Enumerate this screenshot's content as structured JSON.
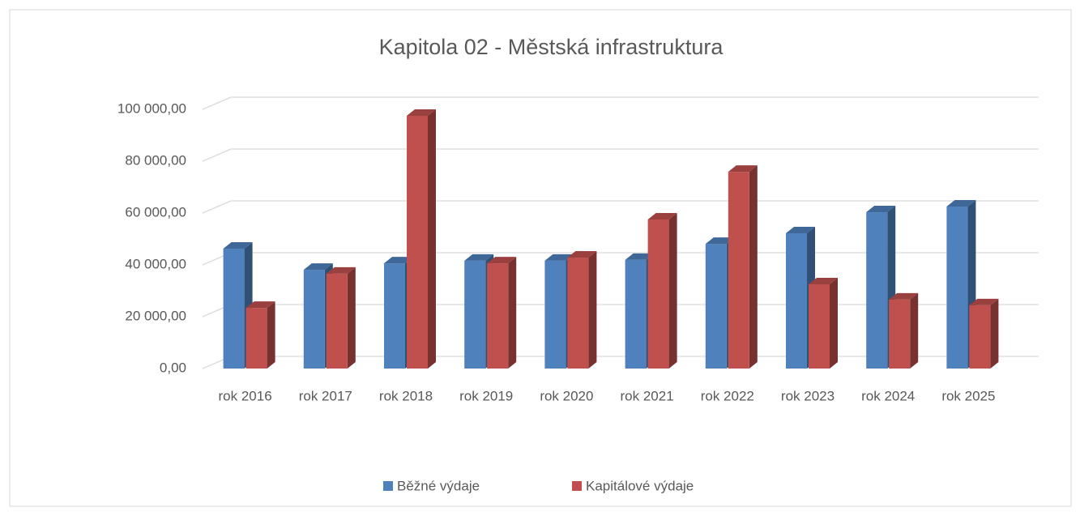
{
  "chart_data": {
    "type": "bar3d",
    "title": "Kapitola 02 - Městská infrastruktura",
    "categories": [
      "rok 2016",
      "rok 2017",
      "rok 2018",
      "rok 2019",
      "rok 2020",
      "rok 2021",
      "rok 2022",
      "rok 2023",
      "rok 2024",
      "rok 2025"
    ],
    "series": [
      {
        "name": "Běžné výdaje",
        "color": "#4f81bd",
        "values": [
          46250,
          38100,
          40600,
          41600,
          41600,
          41900,
          48100,
          52200,
          60300,
          62500
        ]
      },
      {
        "name": "Kapitálové výdaje",
        "color": "#c0504d",
        "values": [
          23400,
          36600,
          97500,
          40600,
          42800,
          57500,
          75900,
          32500,
          26600,
          24400
        ]
      }
    ],
    "ylim": [
      0,
      100000
    ],
    "yticks": [
      {
        "value": 0,
        "label": "0,00"
      },
      {
        "value": 20000,
        "label": "20 000,00"
      },
      {
        "value": 40000,
        "label": "40 000,00"
      },
      {
        "value": 60000,
        "label": "60 000,00"
      },
      {
        "value": 80000,
        "label": "80 000,00"
      },
      {
        "value": 100000,
        "label": "100 000,00"
      }
    ],
    "grid": true,
    "legend": "bottom"
  }
}
